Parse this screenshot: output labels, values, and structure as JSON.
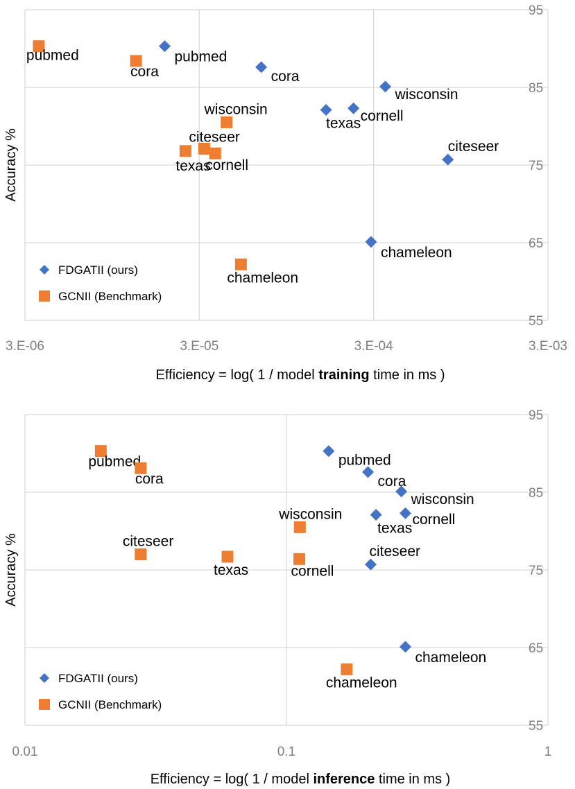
{
  "chart_data": [
    {
      "type": "scatter",
      "title": "",
      "xscale": "log",
      "xlim": [
        3e-06,
        0.003
      ],
      "ylim": [
        55,
        95
      ],
      "xticks": [
        3e-06,
        3e-05,
        0.0003,
        0.003
      ],
      "xtick_labels": [
        "3.E-06",
        "3.E-05",
        "3.E-04",
        "3.E-03"
      ],
      "yticks": [
        55,
        65,
        75,
        85,
        95
      ],
      "ytick_labels": [
        "55",
        "65",
        "75",
        "85",
        "95"
      ],
      "ylabel": "Accuracy %",
      "xlabel_pre": "Efficiency  = log( 1 / model ",
      "xlabel_bold": "training",
      "xlabel_post": " time in ms )",
      "grid": true,
      "legend": "bottom-left",
      "series": [
        {
          "name": "FDGATII (ours)",
          "color": "#4472c4",
          "marker": "diamond",
          "points": [
            {
              "label": "pubmed",
              "x": 1.9e-05,
              "y": 90.3
            },
            {
              "label": "cora",
              "x": 6.8e-05,
              "y": 87.6
            },
            {
              "label": "wisconsin",
              "x": 0.00035,
              "y": 85.1
            },
            {
              "label": "texas",
              "x": 0.00016,
              "y": 82.1
            },
            {
              "label": "cornell",
              "x": 0.00023,
              "y": 82.3
            },
            {
              "label": "citeseer",
              "x": 0.0008,
              "y": 75.7
            },
            {
              "label": "chameleon",
              "x": 0.00029,
              "y": 65.1
            }
          ]
        },
        {
          "name": "GCNII (Benchmark)",
          "color": "#ed7d31",
          "marker": "square",
          "points": [
            {
              "label": "pubmed",
              "x": 3.6e-06,
              "y": 90.3
            },
            {
              "label": "cora",
              "x": 1.3e-05,
              "y": 88.4
            },
            {
              "label": "wisconsin",
              "x": 4.3e-05,
              "y": 80.5
            },
            {
              "label": "citeseer",
              "x": 3.2e-05,
              "y": 77.1
            },
            {
              "label": "texas",
              "x": 2.5e-05,
              "y": 76.8
            },
            {
              "label": "cornell",
              "x": 3.7e-05,
              "y": 76.5
            },
            {
              "label": "chameleon",
              "x": 5.2e-05,
              "y": 62.2
            }
          ]
        }
      ]
    },
    {
      "type": "scatter",
      "title": "",
      "xscale": "log",
      "xlim": [
        0.01,
        1
      ],
      "ylim": [
        55,
        95
      ],
      "xticks": [
        0.01,
        0.1,
        1
      ],
      "xtick_labels": [
        "0.01",
        "0.1",
        "1"
      ],
      "yticks": [
        55,
        65,
        75,
        85,
        95
      ],
      "ytick_labels": [
        "55",
        "65",
        "75",
        "85",
        "95"
      ],
      "ylabel": "Accuracy %",
      "xlabel_pre": "Efficiency  = log( 1 / model ",
      "xlabel_bold": "inference",
      "xlabel_post": " time in ms )",
      "grid": true,
      "legend": "bottom-left",
      "series": [
        {
          "name": "FDGATII (ours)",
          "color": "#4472c4",
          "marker": "diamond",
          "points": [
            {
              "label": "pubmed",
              "x": 0.145,
              "y": 90.3
            },
            {
              "label": "cora",
              "x": 0.205,
              "y": 87.6
            },
            {
              "label": "wisconsin",
              "x": 0.275,
              "y": 85.1
            },
            {
              "label": "texas",
              "x": 0.22,
              "y": 82.1
            },
            {
              "label": "cornell",
              "x": 0.285,
              "y": 82.3
            },
            {
              "label": "citeseer",
              "x": 0.21,
              "y": 75.7
            },
            {
              "label": "chameleon",
              "x": 0.285,
              "y": 65.1
            }
          ]
        },
        {
          "name": "GCNII (Benchmark)",
          "color": "#ed7d31",
          "marker": "square",
          "points": [
            {
              "label": "pubmed",
              "x": 0.0195,
              "y": 90.3
            },
            {
              "label": "cora",
              "x": 0.0277,
              "y": 88.1
            },
            {
              "label": "wisconsin",
              "x": 0.1125,
              "y": 80.5
            },
            {
              "label": "citeseer",
              "x": 0.0277,
              "y": 77.0
            },
            {
              "label": "texas",
              "x": 0.0595,
              "y": 76.7
            },
            {
              "label": "cornell",
              "x": 0.112,
              "y": 76.4
            },
            {
              "label": "chameleon",
              "x": 0.17,
              "y": 62.2
            }
          ]
        }
      ]
    }
  ]
}
